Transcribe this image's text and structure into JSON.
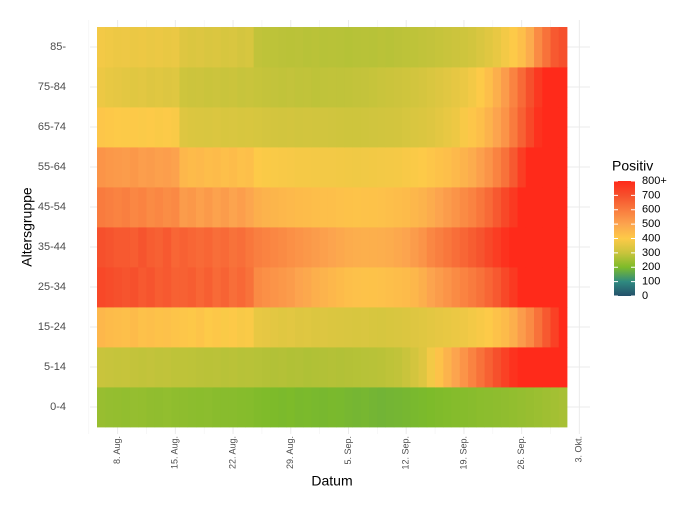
{
  "chart_data": {
    "type": "heatmap",
    "x_label": "Datum",
    "y_label": "Altersgruppe",
    "legend_title": "Positiv",
    "x": [
      "08-06",
      "08-07",
      "08-08",
      "08-09",
      "08-10",
      "08-11",
      "08-12",
      "08-13",
      "08-14",
      "08-15",
      "08-16",
      "08-17",
      "08-18",
      "08-19",
      "08-20",
      "08-21",
      "08-22",
      "08-23",
      "08-24",
      "08-25",
      "08-26",
      "08-27",
      "08-28",
      "08-29",
      "08-30",
      "08-31",
      "09-01",
      "09-02",
      "09-03",
      "09-04",
      "09-05",
      "09-06",
      "09-07",
      "09-08",
      "09-09",
      "09-10",
      "09-11",
      "09-12",
      "09-13",
      "09-14",
      "09-15",
      "09-16",
      "09-17",
      "09-18",
      "09-19",
      "09-20",
      "09-21",
      "09-22",
      "09-23",
      "09-24",
      "09-25",
      "09-26",
      "09-27",
      "09-28",
      "09-29",
      "09-30",
      "10-01"
    ],
    "xlim": [
      "08-06",
      "10-01"
    ],
    "xticks": [
      {
        "value": "08-08",
        "label": "8. Aug."
      },
      {
        "value": "08-15",
        "label": "15. Aug."
      },
      {
        "value": "08-22",
        "label": "22. Aug."
      },
      {
        "value": "08-29",
        "label": "29. Aug."
      },
      {
        "value": "09-05",
        "label": "5. Sep."
      },
      {
        "value": "09-12",
        "label": "12. Sep."
      },
      {
        "value": "09-19",
        "label": "19. Sep."
      },
      {
        "value": "09-26",
        "label": "26. Sep."
      },
      {
        "value": "10-03",
        "label": "3. Okt."
      }
    ],
    "y": [
      "0-4",
      "5-14",
      "15-24",
      "25-34",
      "35-44",
      "45-54",
      "55-64",
      "65-74",
      "75-84",
      "85-"
    ],
    "z": [
      [
        235,
        232,
        230,
        228,
        232,
        230,
        226,
        225,
        228,
        224,
        222,
        220,
        218,
        220,
        216,
        214,
        215,
        212,
        210,
        205,
        202,
        200,
        198,
        200,
        196,
        198,
        195,
        194,
        196,
        195,
        192,
        190,
        192,
        188,
        186,
        188,
        190,
        192,
        195,
        198,
        200,
        204,
        206,
        210,
        212,
        215,
        218,
        220,
        222,
        225,
        228,
        232,
        236,
        240,
        245,
        250,
        255
      ],
      [
        300,
        298,
        295,
        296,
        292,
        290,
        292,
        288,
        290,
        286,
        285,
        284,
        282,
        280,
        282,
        278,
        280,
        276,
        278,
        275,
        272,
        270,
        272,
        268,
        270,
        266,
        268,
        270,
        272,
        270,
        272,
        274,
        276,
        278,
        280,
        285,
        290,
        300,
        320,
        340,
        380,
        420,
        460,
        500,
        540,
        580,
        620,
        660,
        700,
        740,
        780,
        800,
        820,
        850,
        880,
        900,
        900
      ],
      [
        450,
        440,
        435,
        430,
        440,
        425,
        430,
        420,
        425,
        415,
        410,
        405,
        415,
        400,
        408,
        395,
        402,
        390,
        395,
        360,
        355,
        350,
        345,
        348,
        340,
        342,
        336,
        338,
        335,
        332,
        330,
        328,
        330,
        326,
        325,
        328,
        330,
        335,
        340,
        345,
        350,
        355,
        360,
        365,
        372,
        380,
        390,
        400,
        420,
        440,
        470,
        520,
        560,
        620,
        680,
        740,
        800
      ],
      [
        720,
        710,
        700,
        690,
        700,
        680,
        690,
        670,
        680,
        660,
        660,
        670,
        650,
        665,
        640,
        655,
        630,
        645,
        620,
        560,
        550,
        540,
        530,
        520,
        500,
        490,
        470,
        460,
        450,
        440,
        430,
        425,
        420,
        420,
        425,
        430,
        435,
        440,
        450,
        470,
        500,
        520,
        540,
        560,
        580,
        600,
        620,
        650,
        680,
        720,
        760,
        800,
        850,
        900,
        900,
        900,
        900
      ],
      [
        700,
        690,
        680,
        680,
        670,
        690,
        670,
        660,
        680,
        650,
        660,
        650,
        640,
        650,
        630,
        640,
        620,
        630,
        610,
        590,
        580,
        570,
        560,
        550,
        540,
        530,
        520,
        510,
        500,
        490,
        480,
        475,
        470,
        470,
        475,
        480,
        490,
        500,
        520,
        540,
        570,
        590,
        610,
        630,
        650,
        670,
        690,
        720,
        750,
        780,
        800,
        850,
        900,
        900,
        900,
        900,
        900
      ],
      [
        600,
        590,
        580,
        590,
        570,
        580,
        560,
        570,
        555,
        565,
        520,
        530,
        510,
        525,
        505,
        520,
        500,
        515,
        495,
        470,
        460,
        455,
        450,
        445,
        440,
        436,
        432,
        430,
        428,
        425,
        420,
        418,
        420,
        422,
        425,
        430,
        435,
        440,
        450,
        460,
        480,
        500,
        520,
        540,
        560,
        580,
        610,
        640,
        680,
        720,
        760,
        800,
        850,
        900,
        900,
        900,
        900
      ],
      [
        540,
        530,
        525,
        520,
        530,
        515,
        520,
        510,
        515,
        505,
        450,
        440,
        445,
        435,
        440,
        430,
        438,
        425,
        430,
        400,
        395,
        392,
        390,
        388,
        385,
        384,
        382,
        380,
        380,
        378,
        376,
        375,
        376,
        378,
        380,
        382,
        385,
        390,
        395,
        400,
        410,
        420,
        430,
        445,
        460,
        480,
        510,
        540,
        580,
        620,
        680,
        750,
        800,
        850,
        900,
        900,
        900
      ],
      [
        410,
        405,
        400,
        398,
        402,
        396,
        400,
        394,
        398,
        392,
        340,
        335,
        332,
        330,
        334,
        328,
        330,
        326,
        328,
        325,
        322,
        320,
        318,
        320,
        316,
        318,
        315,
        316,
        314,
        312,
        310,
        310,
        312,
        314,
        316,
        318,
        320,
        325,
        330,
        335,
        340,
        350,
        360,
        370,
        390,
        410,
        430,
        460,
        500,
        540,
        600,
        660,
        720,
        780,
        820,
        860,
        900
      ],
      [
        370,
        360,
        355,
        350,
        345,
        348,
        340,
        344,
        338,
        342,
        310,
        305,
        308,
        302,
        306,
        300,
        304,
        298,
        300,
        296,
        294,
        292,
        290,
        292,
        288,
        290,
        286,
        288,
        290,
        288,
        290,
        292,
        294,
        296,
        300,
        304,
        308,
        312,
        318,
        324,
        330,
        338,
        346,
        356,
        366,
        380,
        400,
        430,
        470,
        520,
        580,
        640,
        700,
        760,
        820,
        860,
        900
      ],
      [
        380,
        375,
        370,
        372,
        366,
        370,
        364,
        368,
        362,
        365,
        340,
        335,
        338,
        330,
        334,
        326,
        330,
        322,
        326,
        290,
        286,
        284,
        282,
        280,
        282,
        278,
        280,
        276,
        278,
        276,
        274,
        276,
        278,
        276,
        280,
        278,
        282,
        284,
        286,
        290,
        292,
        296,
        300,
        305,
        310,
        318,
        330,
        345,
        360,
        380,
        400,
        430,
        480,
        560,
        620,
        680,
        700
      ]
    ],
    "clim": [
      0,
      800
    ],
    "cticks": [
      0,
      100,
      200,
      300,
      400,
      500,
      600,
      700,
      {
        "value": 800,
        "label": "800+"
      }
    ],
    "colors": [
      "#24506a",
      "#2f8a80",
      "#7dbb2a",
      "#c9c43c",
      "#fdca48",
      "#fca44e",
      "#f97b3e",
      "#f6502c",
      "#ff2a1a"
    ],
    "grid": true
  }
}
